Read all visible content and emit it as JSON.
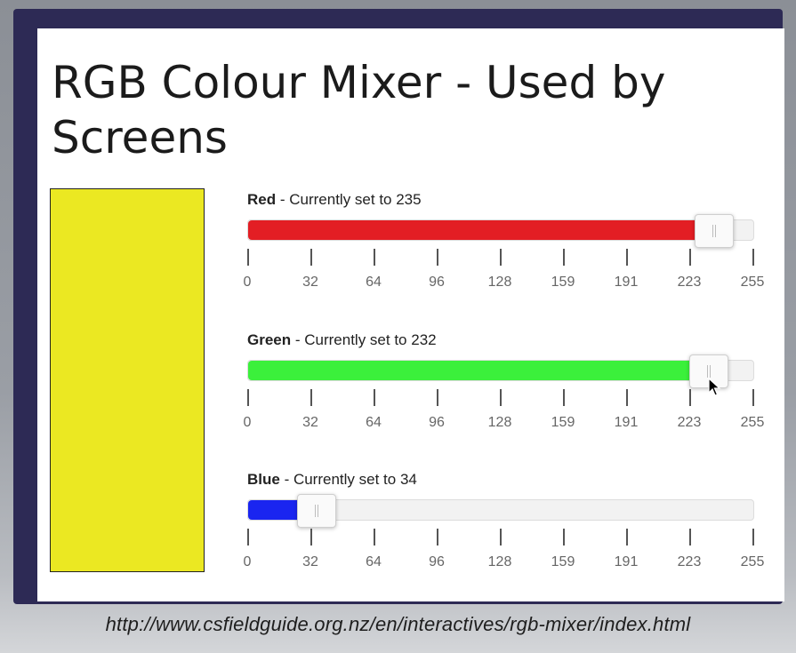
{
  "page": {
    "title": "RGB Colour Mixer - Used by Screens"
  },
  "swatch": {
    "color": "#ebe822"
  },
  "sliders": [
    {
      "channel": "Red",
      "status": " - Currently set to 235",
      "value": 235,
      "max": 255,
      "fill_color": "#e31e24"
    },
    {
      "channel": "Green",
      "status": " - Currently set to 232",
      "value": 232,
      "max": 255,
      "fill_color": "#3bf03b"
    },
    {
      "channel": "Blue",
      "status": " - Currently set to 34",
      "value": 34,
      "max": 255,
      "fill_color": "#1a25f0"
    }
  ],
  "tick_labels": [
    "0",
    "32",
    "64",
    "96",
    "128",
    "159",
    "191",
    "223",
    "255"
  ],
  "footer": {
    "url": "http://www.csfieldguide.org.nz/en/interactives/rgb-mixer/index.html"
  },
  "cursor": {
    "icon": "mouse-pointer-icon",
    "slider": "Green"
  }
}
